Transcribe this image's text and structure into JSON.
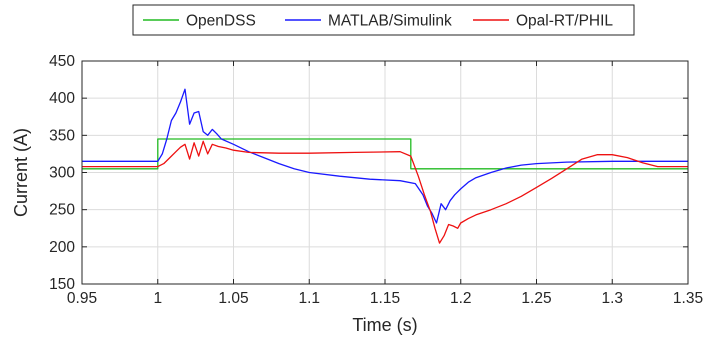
{
  "chart_data": {
    "type": "line",
    "xlabel": "Time (s)",
    "ylabel": "Current (A)",
    "xlim": [
      0.95,
      1.35
    ],
    "ylim": [
      150,
      450
    ],
    "xticks": [
      0.95,
      1.0,
      1.05,
      1.1,
      1.15,
      1.2,
      1.25,
      1.3,
      1.35
    ],
    "xtick_labels": [
      "0.95",
      "1",
      "1.05",
      "1.1",
      "1.15",
      "1.2",
      "1.25",
      "1.3",
      "1.35"
    ],
    "yticks": [
      150,
      200,
      250,
      300,
      350,
      400,
      450
    ],
    "ytick_labels": [
      "150",
      "200",
      "250",
      "300",
      "350",
      "400",
      "450"
    ],
    "grid": true,
    "legend_position": "top-center-outside",
    "series": [
      {
        "name": "OpenDSS",
        "color": "#22bb22",
        "x": [
          0.95,
          1.0,
          1.0,
          1.167,
          1.167,
          1.35
        ],
        "y": [
          305,
          305,
          345,
          345,
          305,
          305
        ]
      },
      {
        "name": "MATLAB/Simulink",
        "color": "#1a1aff",
        "x": [
          0.95,
          1.0,
          1.003,
          1.006,
          1.009,
          1.012,
          1.015,
          1.018,
          1.021,
          1.024,
          1.027,
          1.03,
          1.033,
          1.036,
          1.039,
          1.042,
          1.05,
          1.06,
          1.07,
          1.08,
          1.09,
          1.1,
          1.12,
          1.14,
          1.16,
          1.17,
          1.175,
          1.178,
          1.181,
          1.184,
          1.187,
          1.19,
          1.193,
          1.196,
          1.2,
          1.205,
          1.21,
          1.22,
          1.23,
          1.24,
          1.25,
          1.27,
          1.3,
          1.35
        ],
        "y": [
          315,
          315,
          325,
          345,
          370,
          380,
          395,
          412,
          365,
          380,
          382,
          355,
          350,
          358,
          352,
          345,
          338,
          328,
          320,
          312,
          305,
          300,
          295,
          291,
          289,
          285,
          270,
          255,
          245,
          232,
          258,
          250,
          262,
          270,
          278,
          287,
          293,
          300,
          306,
          310,
          312,
          314,
          315,
          315
        ]
      },
      {
        "name": "Opal-RT/PHIL",
        "color": "#ee1111",
        "x": [
          0.95,
          1.0,
          1.004,
          1.008,
          1.012,
          1.015,
          1.018,
          1.021,
          1.024,
          1.027,
          1.03,
          1.033,
          1.036,
          1.04,
          1.045,
          1.05,
          1.06,
          1.08,
          1.1,
          1.13,
          1.16,
          1.167,
          1.172,
          1.176,
          1.18,
          1.183,
          1.186,
          1.189,
          1.192,
          1.195,
          1.198,
          1.2,
          1.205,
          1.21,
          1.22,
          1.23,
          1.24,
          1.25,
          1.26,
          1.27,
          1.28,
          1.29,
          1.3,
          1.31,
          1.32,
          1.33,
          1.35
        ],
        "y": [
          308,
          308,
          312,
          320,
          328,
          334,
          338,
          318,
          340,
          322,
          342,
          325,
          338,
          335,
          333,
          330,
          327,
          326,
          326,
          327,
          328,
          322,
          295,
          270,
          248,
          225,
          205,
          215,
          230,
          228,
          225,
          232,
          238,
          243,
          250,
          258,
          268,
          280,
          292,
          305,
          318,
          324,
          324,
          320,
          313,
          308,
          308
        ]
      }
    ]
  }
}
